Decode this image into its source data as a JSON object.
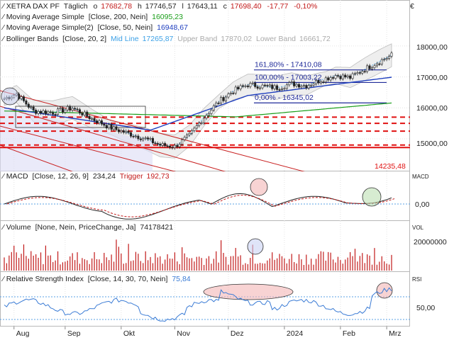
{
  "header": {
    "symbol": "XETRA DAX PF",
    "period": "Täglich",
    "o_label": "o",
    "o_value": "17682,78",
    "h_label": "h",
    "h_value": "17746,57",
    "l_label": "l",
    "l_value": "17643,11",
    "c_label": "c",
    "c_value": "17698,40",
    "change": "-17,77",
    "change_pct": "-0,10%"
  },
  "indicators": [
    {
      "label": "Moving Average Simple",
      "params": "[Close, 200, Nein]",
      "value": "16095,23",
      "color": "#1a9e1a"
    },
    {
      "label": "Moving Average Simple(2)",
      "params": "[Close, 50, Nein]",
      "value": "16948,67",
      "color": "#1f3fbf"
    },
    {
      "label": "Bollinger Bands",
      "params": "[Close, 20, 2]",
      "mid_label": "Mid Line",
      "mid_value": "17265,87",
      "upper_label": "Upper Band",
      "upper_value": "17870,02",
      "lower_label": "Lower Band",
      "lower_value": "16661,72"
    }
  ],
  "price_axis": {
    "ticks": [
      "18000,00",
      "17000,00",
      "16000,00",
      "15000,00"
    ],
    "currency_symbol": "€"
  },
  "fib_labels": [
    "161,80% - 17410,08",
    "100,00% - 17003,22",
    "0,00% - 16345,02"
  ],
  "support_label": "14235,48",
  "macd": {
    "title": "MACD",
    "params": "[Close, 12, 26, 9]",
    "value": "234,24",
    "trigger_label": "Trigger",
    "trigger_value": "192,73",
    "axis_tag": "MACD",
    "zero_tick": "0,00"
  },
  "volume": {
    "title": "Volume",
    "params": "[None, Nein, PriceChange, Ja]",
    "value": "74178421",
    "axis_tag": "VOL",
    "tick": "20000000"
  },
  "rsi": {
    "title": "Relative Strength Index",
    "params": "[Close, 14, 30, 70, Nein]",
    "value": "75,84",
    "axis_tag": "RSI",
    "tick": "50,00"
  },
  "x_labels": [
    "Aug",
    "Sep",
    "Okt",
    "Nov",
    "Dez",
    "2024",
    "Feb",
    "Mrz"
  ],
  "colors": {
    "ma200": "#1a9e1a",
    "ma50": "#1f3fbf",
    "bollinger_mid": "#3da1e6",
    "channel": "#c82020",
    "support": "#e01010",
    "fib": "#1f2a99",
    "candle": "#222222",
    "volume": "#c21a1a",
    "rsi": "#3a7bd5",
    "highlight": "#f4b6b6"
  },
  "chart_data": {
    "type": "line",
    "title": "XETRA DAX PF",
    "x": [
      "Aug",
      "Sep",
      "Okt",
      "Nov",
      "Dez",
      "2024",
      "Feb",
      "Mrz"
    ],
    "series": [
      {
        "name": "Close",
        "values": [
          16300,
          15850,
          15300,
          14900,
          16500,
          16750,
          17050,
          17700
        ]
      },
      {
        "name": "Moving Average Simple",
        "values": [
          15900,
          15780,
          15670,
          15620,
          15700,
          15820,
          15950,
          16095
        ]
      },
      {
        "name": "Moving Average Simple(2)",
        "values": [
          16000,
          15800,
          15550,
          15200,
          15500,
          16500,
          16700,
          16950
        ]
      }
    ],
    "ylim": [
      14200,
      18600
    ],
    "y_ticks": [
      15000,
      16000,
      17000,
      18000
    ],
    "horizontal_levels": [
      17410.08,
      17003.22,
      16345.02,
      14235.48
    ],
    "grid": true
  }
}
